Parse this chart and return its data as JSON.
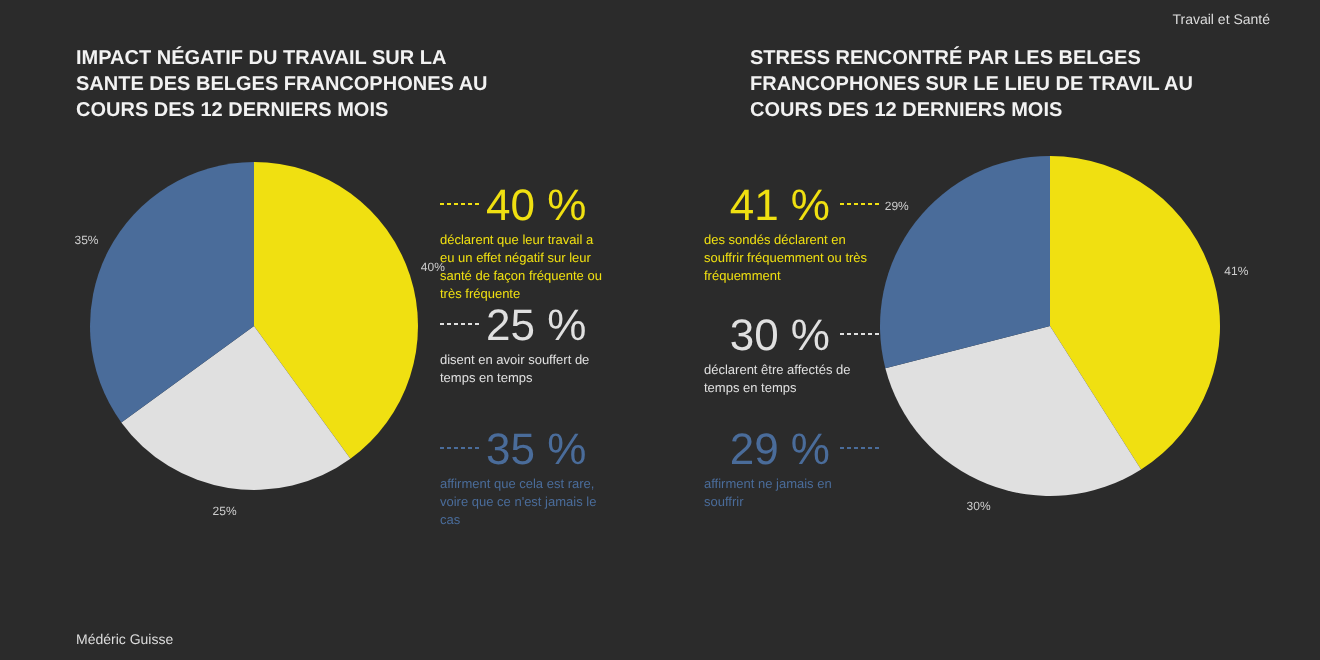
{
  "chart_data": [
    {
      "type": "pie",
      "title": "IMPACT NÉGATIF DU TRAVAIL SUR LA SANTE DES BELGES FRANCOPHONES AU COURS DES 12 DERNIERS MOIS",
      "categories": [
        null,
        null,
        null
      ],
      "values": [
        40,
        25,
        35
      ],
      "colors": [
        "#f0e011",
        "#e0e0e0",
        "#4a6c9a"
      ],
      "value_labels": [
        "40%",
        "25%",
        "35%"
      ],
      "annotations": [
        "40 %",
        "déclarent que leur travail a eu un effet négatif sur leur santé de façon fréquente ou très fréquente",
        "25 %",
        "disent en avoir souffert de temps en temps",
        "35 %",
        "affirment que cela est rare, voire que ce n'est jamais le cas",
        "Médéric Guisse"
      ]
    },
    {
      "type": "pie",
      "title": "STRESS RENCONTRÉ PAR LES BELGES FRANCOPHONES SUR LE LIEU DE TRAVIL AU COURS DES 12 DERNIERS MOIS",
      "categories": [
        null,
        null,
        null
      ],
      "values": [
        41,
        30,
        29
      ],
      "colors": [
        "#f0e011",
        "#e0e0e0",
        "#4a6c9a"
      ],
      "value_labels": [
        "41%",
        "30%",
        "29%"
      ],
      "annotations": [
        "41 %",
        "des sondés déclarent en souffrir fréquemment ou très fréquemment",
        "30 %",
        "déclarent être affectés de temps en temps",
        "29 %",
        "affirment ne jamais en souffrir",
        "Travail et Santé"
      ]
    }
  ]
}
